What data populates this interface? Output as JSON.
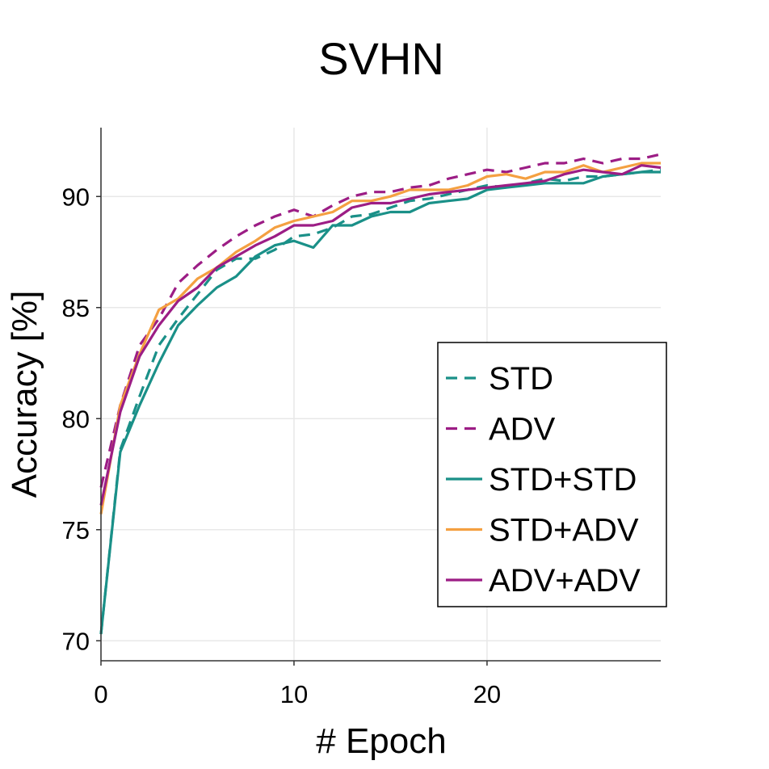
{
  "chart_data": {
    "type": "line",
    "title": "SVHN",
    "xlabel": "# Epoch",
    "ylabel": "Accuracy [%]",
    "xlim": [
      0,
      29
    ],
    "ylim": [
      69.1,
      93.1
    ],
    "xticks": [
      0,
      10,
      20
    ],
    "xtick_labels": [
      "0",
      "10",
      "20"
    ],
    "yticks": [
      70,
      75,
      80,
      85,
      90
    ],
    "ytick_labels": [
      "70",
      "75",
      "80",
      "85",
      "90"
    ],
    "grid": true,
    "legend_position": "center-right",
    "x": [
      0,
      1,
      2,
      3,
      4,
      5,
      6,
      7,
      8,
      9,
      10,
      11,
      12,
      13,
      14,
      15,
      16,
      17,
      18,
      19,
      20,
      21,
      22,
      23,
      24,
      25,
      26,
      27,
      28,
      29
    ],
    "series": [
      {
        "name": "STD",
        "color": "#1a9088",
        "dash": "dashed",
        "values": [
          70.3,
          78.6,
          81.0,
          83.3,
          84.5,
          85.6,
          86.7,
          87.2,
          87.2,
          87.6,
          88.2,
          88.3,
          88.6,
          89.1,
          89.2,
          89.5,
          89.8,
          89.9,
          90.1,
          90.3,
          90.5,
          90.4,
          90.6,
          90.8,
          90.7,
          90.9,
          90.9,
          91.0,
          91.1,
          91.2
        ]
      },
      {
        "name": "ADV",
        "color": "#9c1d85",
        "dash": "dashed",
        "values": [
          76.9,
          80.6,
          83.3,
          84.5,
          86.1,
          86.9,
          87.6,
          88.2,
          88.7,
          89.1,
          89.4,
          89.1,
          89.6,
          90.0,
          90.2,
          90.2,
          90.4,
          90.5,
          90.8,
          91.0,
          91.2,
          91.1,
          91.3,
          91.5,
          91.5,
          91.7,
          91.5,
          91.7,
          91.7,
          91.9
        ]
      },
      {
        "name": "STD+STD",
        "color": "#1a9088",
        "dash": "solid",
        "values": [
          70.3,
          78.5,
          80.6,
          82.5,
          84.2,
          85.1,
          85.9,
          86.4,
          87.3,
          87.8,
          88.0,
          87.7,
          88.7,
          88.7,
          89.1,
          89.3,
          89.3,
          89.7,
          89.8,
          89.9,
          90.3,
          90.4,
          90.5,
          90.6,
          90.6,
          90.6,
          90.9,
          91.0,
          91.1,
          91.1
        ]
      },
      {
        "name": "STD+ADV",
        "color": "#f4a041",
        "dash": "solid",
        "values": [
          75.7,
          80.6,
          82.9,
          84.9,
          85.4,
          86.3,
          86.8,
          87.5,
          88.0,
          88.6,
          88.9,
          89.1,
          89.3,
          89.8,
          89.8,
          90.0,
          90.3,
          90.3,
          90.3,
          90.5,
          90.9,
          91.0,
          90.8,
          91.1,
          91.1,
          91.4,
          91.1,
          91.3,
          91.5,
          91.5
        ]
      },
      {
        "name": "ADV+ADV",
        "color": "#9c1d85",
        "dash": "solid",
        "values": [
          76.1,
          80.3,
          82.8,
          84.2,
          85.3,
          85.9,
          86.8,
          87.3,
          87.8,
          88.2,
          88.7,
          88.7,
          88.9,
          89.5,
          89.7,
          89.7,
          89.9,
          90.1,
          90.2,
          90.3,
          90.4,
          90.5,
          90.6,
          90.7,
          91.0,
          91.2,
          91.1,
          91.0,
          91.4,
          91.3
        ]
      }
    ]
  }
}
